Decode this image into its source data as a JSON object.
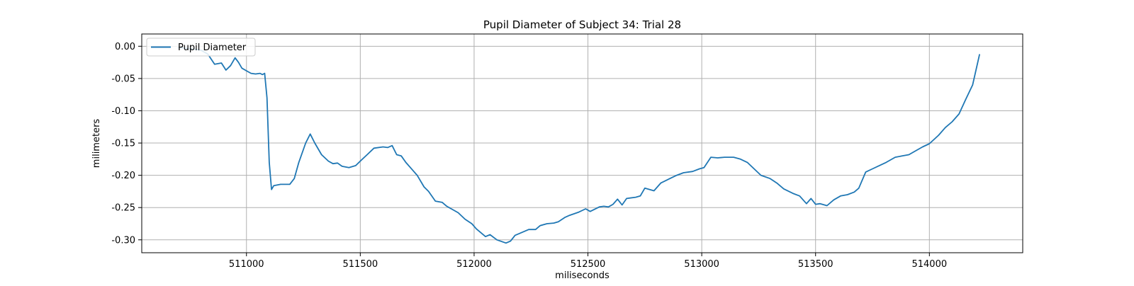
{
  "chart_data": {
    "type": "line",
    "title": "Pupil Diameter of Subject 34: Trial 28",
    "xlabel": "miliseconds",
    "ylabel": "milimeters",
    "xlim": [
      510540,
      514410
    ],
    "ylim": [
      -0.32,
      0.019
    ],
    "x_ticks": [
      511000,
      511500,
      512000,
      512500,
      513000,
      513500,
      514000
    ],
    "y_ticks": [
      0.0,
      -0.05,
      -0.1,
      -0.15,
      -0.2,
      -0.25,
      -0.3
    ],
    "y_tick_labels": [
      "0.00",
      "-0.05",
      "-0.10",
      "-0.15",
      "-0.20",
      "-0.25",
      "-0.30"
    ],
    "grid": true,
    "legend": "top-left",
    "series": [
      {
        "name": "Pupil Diameter",
        "color": "#1f77b4",
        "x": [
          510700,
          510760,
          510800,
          510830,
          510860,
          510890,
          510910,
          510930,
          510950,
          510965,
          510980,
          511000,
          511020,
          511040,
          511060,
          511070,
          511080,
          511090,
          511100,
          511110,
          511120,
          511150,
          511190,
          511210,
          511230,
          511260,
          511280,
          511300,
          511330,
          511360,
          511380,
          511400,
          511420,
          511450,
          511480,
          511500,
          511530,
          511560,
          511600,
          511620,
          511640,
          511660,
          511680,
          511700,
          511730,
          511750,
          511780,
          511800,
          511830,
          511860,
          511880,
          511900,
          511930,
          511960,
          511990,
          512010,
          512050,
          512070,
          512100,
          512140,
          512160,
          512180,
          512200,
          512240,
          512270,
          512290,
          512320,
          512350,
          512370,
          512400,
          512420,
          512460,
          512490,
          512510,
          512550,
          512570,
          512590,
          512610,
          512630,
          512650,
          512670,
          512710,
          512730,
          512750,
          512790,
          512820,
          512860,
          512890,
          512920,
          512960,
          512990,
          513010,
          513040,
          513070,
          513100,
          513140,
          513170,
          513200,
          513230,
          513260,
          513300,
          513330,
          513360,
          513400,
          513430,
          513460,
          513480,
          513500,
          513520,
          513550,
          513580,
          513610,
          513640,
          513670,
          513690,
          513720,
          513750,
          513780,
          513810,
          513850,
          513880,
          513910,
          513940,
          513970,
          514000,
          514040,
          514070,
          514100,
          514130,
          514160,
          514190,
          514220
        ],
        "y": [
          -0.002,
          -0.004,
          -0.006,
          -0.012,
          -0.028,
          -0.026,
          -0.037,
          -0.03,
          -0.018,
          -0.025,
          -0.034,
          -0.038,
          -0.042,
          -0.043,
          -0.042,
          -0.044,
          -0.042,
          -0.08,
          -0.18,
          -0.222,
          -0.216,
          -0.214,
          -0.214,
          -0.205,
          -0.18,
          -0.15,
          -0.136,
          -0.15,
          -0.168,
          -0.178,
          -0.182,
          -0.181,
          -0.186,
          -0.188,
          -0.185,
          -0.178,
          -0.168,
          -0.158,
          -0.156,
          -0.157,
          -0.154,
          -0.168,
          -0.17,
          -0.18,
          -0.192,
          -0.2,
          -0.218,
          -0.225,
          -0.24,
          -0.242,
          -0.248,
          -0.252,
          -0.258,
          -0.268,
          -0.275,
          -0.283,
          -0.295,
          -0.292,
          -0.3,
          -0.305,
          -0.302,
          -0.293,
          -0.29,
          -0.284,
          -0.284,
          -0.278,
          -0.275,
          -0.274,
          -0.272,
          -0.265,
          -0.262,
          -0.257,
          -0.252,
          -0.256,
          -0.249,
          -0.248,
          -0.249,
          -0.245,
          -0.237,
          -0.246,
          -0.236,
          -0.234,
          -0.232,
          -0.22,
          -0.224,
          -0.212,
          -0.205,
          -0.2,
          -0.196,
          -0.194,
          -0.19,
          -0.188,
          -0.172,
          -0.173,
          -0.172,
          -0.172,
          -0.175,
          -0.18,
          -0.19,
          -0.2,
          -0.205,
          -0.212,
          -0.221,
          -0.228,
          -0.232,
          -0.244,
          -0.236,
          -0.245,
          -0.244,
          -0.247,
          -0.238,
          -0.232,
          -0.23,
          -0.226,
          -0.22,
          -0.195,
          -0.19,
          -0.185,
          -0.18,
          -0.172,
          -0.17,
          -0.168,
          -0.162,
          -0.156,
          -0.151,
          -0.138,
          -0.126,
          -0.117,
          -0.105,
          -0.082,
          -0.06,
          -0.013
        ]
      }
    ]
  }
}
